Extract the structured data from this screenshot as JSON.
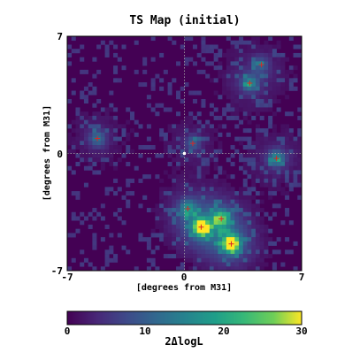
{
  "chart_data": {
    "type": "heatmap",
    "title": "TS Map (initial)",
    "xlabel": "[degrees from M31]",
    "ylabel": "[degrees from M31]",
    "xlim": [
      -7,
      7
    ],
    "ylim": [
      -7,
      7
    ],
    "x_ticks": [
      "-7",
      "0",
      "7"
    ],
    "y_ticks": [
      "7",
      "0",
      "-7"
    ],
    "colorbar": {
      "label": "2ΔlogL",
      "range": [
        0,
        30
      ],
      "ticks": [
        "0",
        "10",
        "20",
        "30"
      ],
      "colormap": "viridis"
    },
    "grid": false,
    "crosshair_at": [
      0,
      0
    ],
    "hotspots": [
      {
        "x": 2.8,
        "y": -5.4,
        "ts": 30,
        "marker": true
      },
      {
        "x": 1.0,
        "y": -4.4,
        "ts": 27,
        "marker": true
      },
      {
        "x": 2.2,
        "y": -3.9,
        "ts": 17,
        "marker": true
      },
      {
        "x": 0.2,
        "y": -3.3,
        "ts": 12,
        "marker": true
      },
      {
        "x": 5.5,
        "y": -0.3,
        "ts": 13,
        "marker": true
      },
      {
        "x": 3.9,
        "y": 4.2,
        "ts": 12,
        "marker": true
      },
      {
        "x": -5.2,
        "y": 0.9,
        "ts": 10,
        "marker": true
      },
      {
        "x": 0.5,
        "y": 0.6,
        "ts": 8,
        "marker": true
      },
      {
        "x": 4.6,
        "y": 5.3,
        "ts": 7,
        "marker": true
      }
    ]
  }
}
